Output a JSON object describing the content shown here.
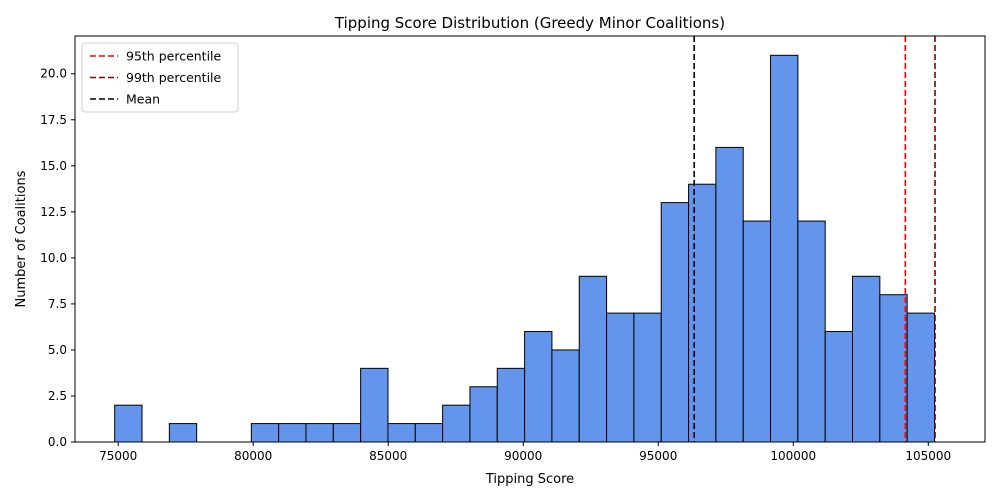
{
  "chart_data": {
    "type": "bar",
    "title": "Tipping Score Distribution (Greedy Minor Coalitions)",
    "xlabel": "Tipping Score",
    "ylabel": "Number of Coalitions",
    "xlim": [
      73400,
      107100
    ],
    "ylim": [
      0,
      22.05
    ],
    "xticks": [
      75000,
      80000,
      85000,
      90000,
      95000,
      100000,
      105000
    ],
    "xtick_labels": [
      "75000",
      "80000",
      "85000",
      "90000",
      "95000",
      "100000",
      "105000"
    ],
    "yticks": [
      0,
      2.5,
      5,
      7.5,
      10,
      12.5,
      15,
      17.5,
      20
    ],
    "ytick_labels": [
      "0.0",
      "2.5",
      "5.0",
      "7.5",
      "10.0",
      "12.5",
      "15.0",
      "17.5",
      "20.0"
    ],
    "bin_start": 74870,
    "bin_width": 1012,
    "counts": [
      2,
      0,
      1,
      0,
      0,
      1,
      1,
      1,
      1,
      4,
      1,
      1,
      2,
      3,
      4,
      6,
      5,
      9,
      7,
      7,
      13,
      14,
      16,
      12,
      21,
      12,
      6,
      9,
      8,
      7
    ],
    "bar_color": "#6495ED",
    "edge_color": "#000000",
    "grid": false,
    "legend_position": "upper-left",
    "vlines": [
      {
        "name": "95th percentile",
        "x": 104150,
        "color": "#FF0000"
      },
      {
        "name": "99th percentile",
        "x": 105250,
        "color": "#8B0000"
      },
      {
        "name": "Mean",
        "x": 96330,
        "color": "#000000"
      }
    ]
  }
}
